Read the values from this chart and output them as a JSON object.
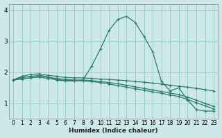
{
  "title": "",
  "xlabel": "Humidex (Indice chaleur)",
  "bg_color": "#cce8e8",
  "grid_color": "#99cccc",
  "line_color": "#2a7a6a",
  "xlim": [
    -0.5,
    23.5
  ],
  "ylim": [
    0.5,
    4.2
  ],
  "yticks": [
    1,
    2,
    3,
    4
  ],
  "xticks": [
    0,
    1,
    2,
    3,
    4,
    5,
    6,
    7,
    8,
    9,
    10,
    11,
    12,
    13,
    14,
    15,
    16,
    17,
    18,
    19,
    20,
    21,
    22,
    23
  ],
  "lines": [
    {
      "x": [
        0,
        1,
        2,
        3,
        4,
        5,
        6,
        7,
        8,
        9,
        10,
        11,
        12,
        13,
        14,
        15,
        16,
        17,
        18,
        19,
        20,
        21,
        22,
        23
      ],
      "y": [
        1.75,
        1.85,
        1.85,
        1.9,
        1.85,
        1.75,
        1.72,
        1.72,
        1.75,
        2.2,
        2.75,
        3.35,
        3.7,
        3.8,
        3.6,
        3.15,
        2.65,
        1.7,
        1.4,
        1.5,
        1.1,
        0.8,
        0.75,
        0.75
      ]
    },
    {
      "x": [
        0,
        1,
        2,
        3,
        4,
        5,
        6,
        7,
        8,
        9,
        10,
        11,
        12,
        13,
        14,
        15,
        16,
        17,
        18,
        19,
        20,
        21,
        22,
        23
      ],
      "y": [
        1.75,
        1.87,
        1.93,
        1.95,
        1.9,
        1.87,
        1.83,
        1.82,
        1.82,
        1.8,
        1.78,
        1.77,
        1.75,
        1.73,
        1.7,
        1.68,
        1.65,
        1.62,
        1.58,
        1.55,
        1.52,
        1.48,
        1.44,
        1.4
      ]
    },
    {
      "x": [
        0,
        1,
        2,
        3,
        4,
        5,
        6,
        7,
        8,
        9,
        10,
        11,
        12,
        13,
        14,
        15,
        16,
        17,
        18,
        19,
        20,
        21,
        22,
        23
      ],
      "y": [
        1.75,
        1.82,
        1.87,
        1.88,
        1.84,
        1.8,
        1.77,
        1.75,
        1.75,
        1.73,
        1.7,
        1.67,
        1.63,
        1.58,
        1.53,
        1.48,
        1.43,
        1.38,
        1.33,
        1.28,
        1.2,
        1.1,
        1.0,
        0.9
      ]
    },
    {
      "x": [
        0,
        1,
        2,
        3,
        4,
        5,
        6,
        7,
        8,
        9,
        10,
        11,
        12,
        13,
        14,
        15,
        16,
        17,
        18,
        19,
        20,
        21,
        22,
        23
      ],
      "y": [
        1.75,
        1.78,
        1.82,
        1.84,
        1.8,
        1.76,
        1.74,
        1.73,
        1.72,
        1.7,
        1.67,
        1.62,
        1.57,
        1.52,
        1.47,
        1.42,
        1.37,
        1.32,
        1.27,
        1.22,
        1.12,
        1.02,
        0.92,
        0.82
      ]
    }
  ]
}
